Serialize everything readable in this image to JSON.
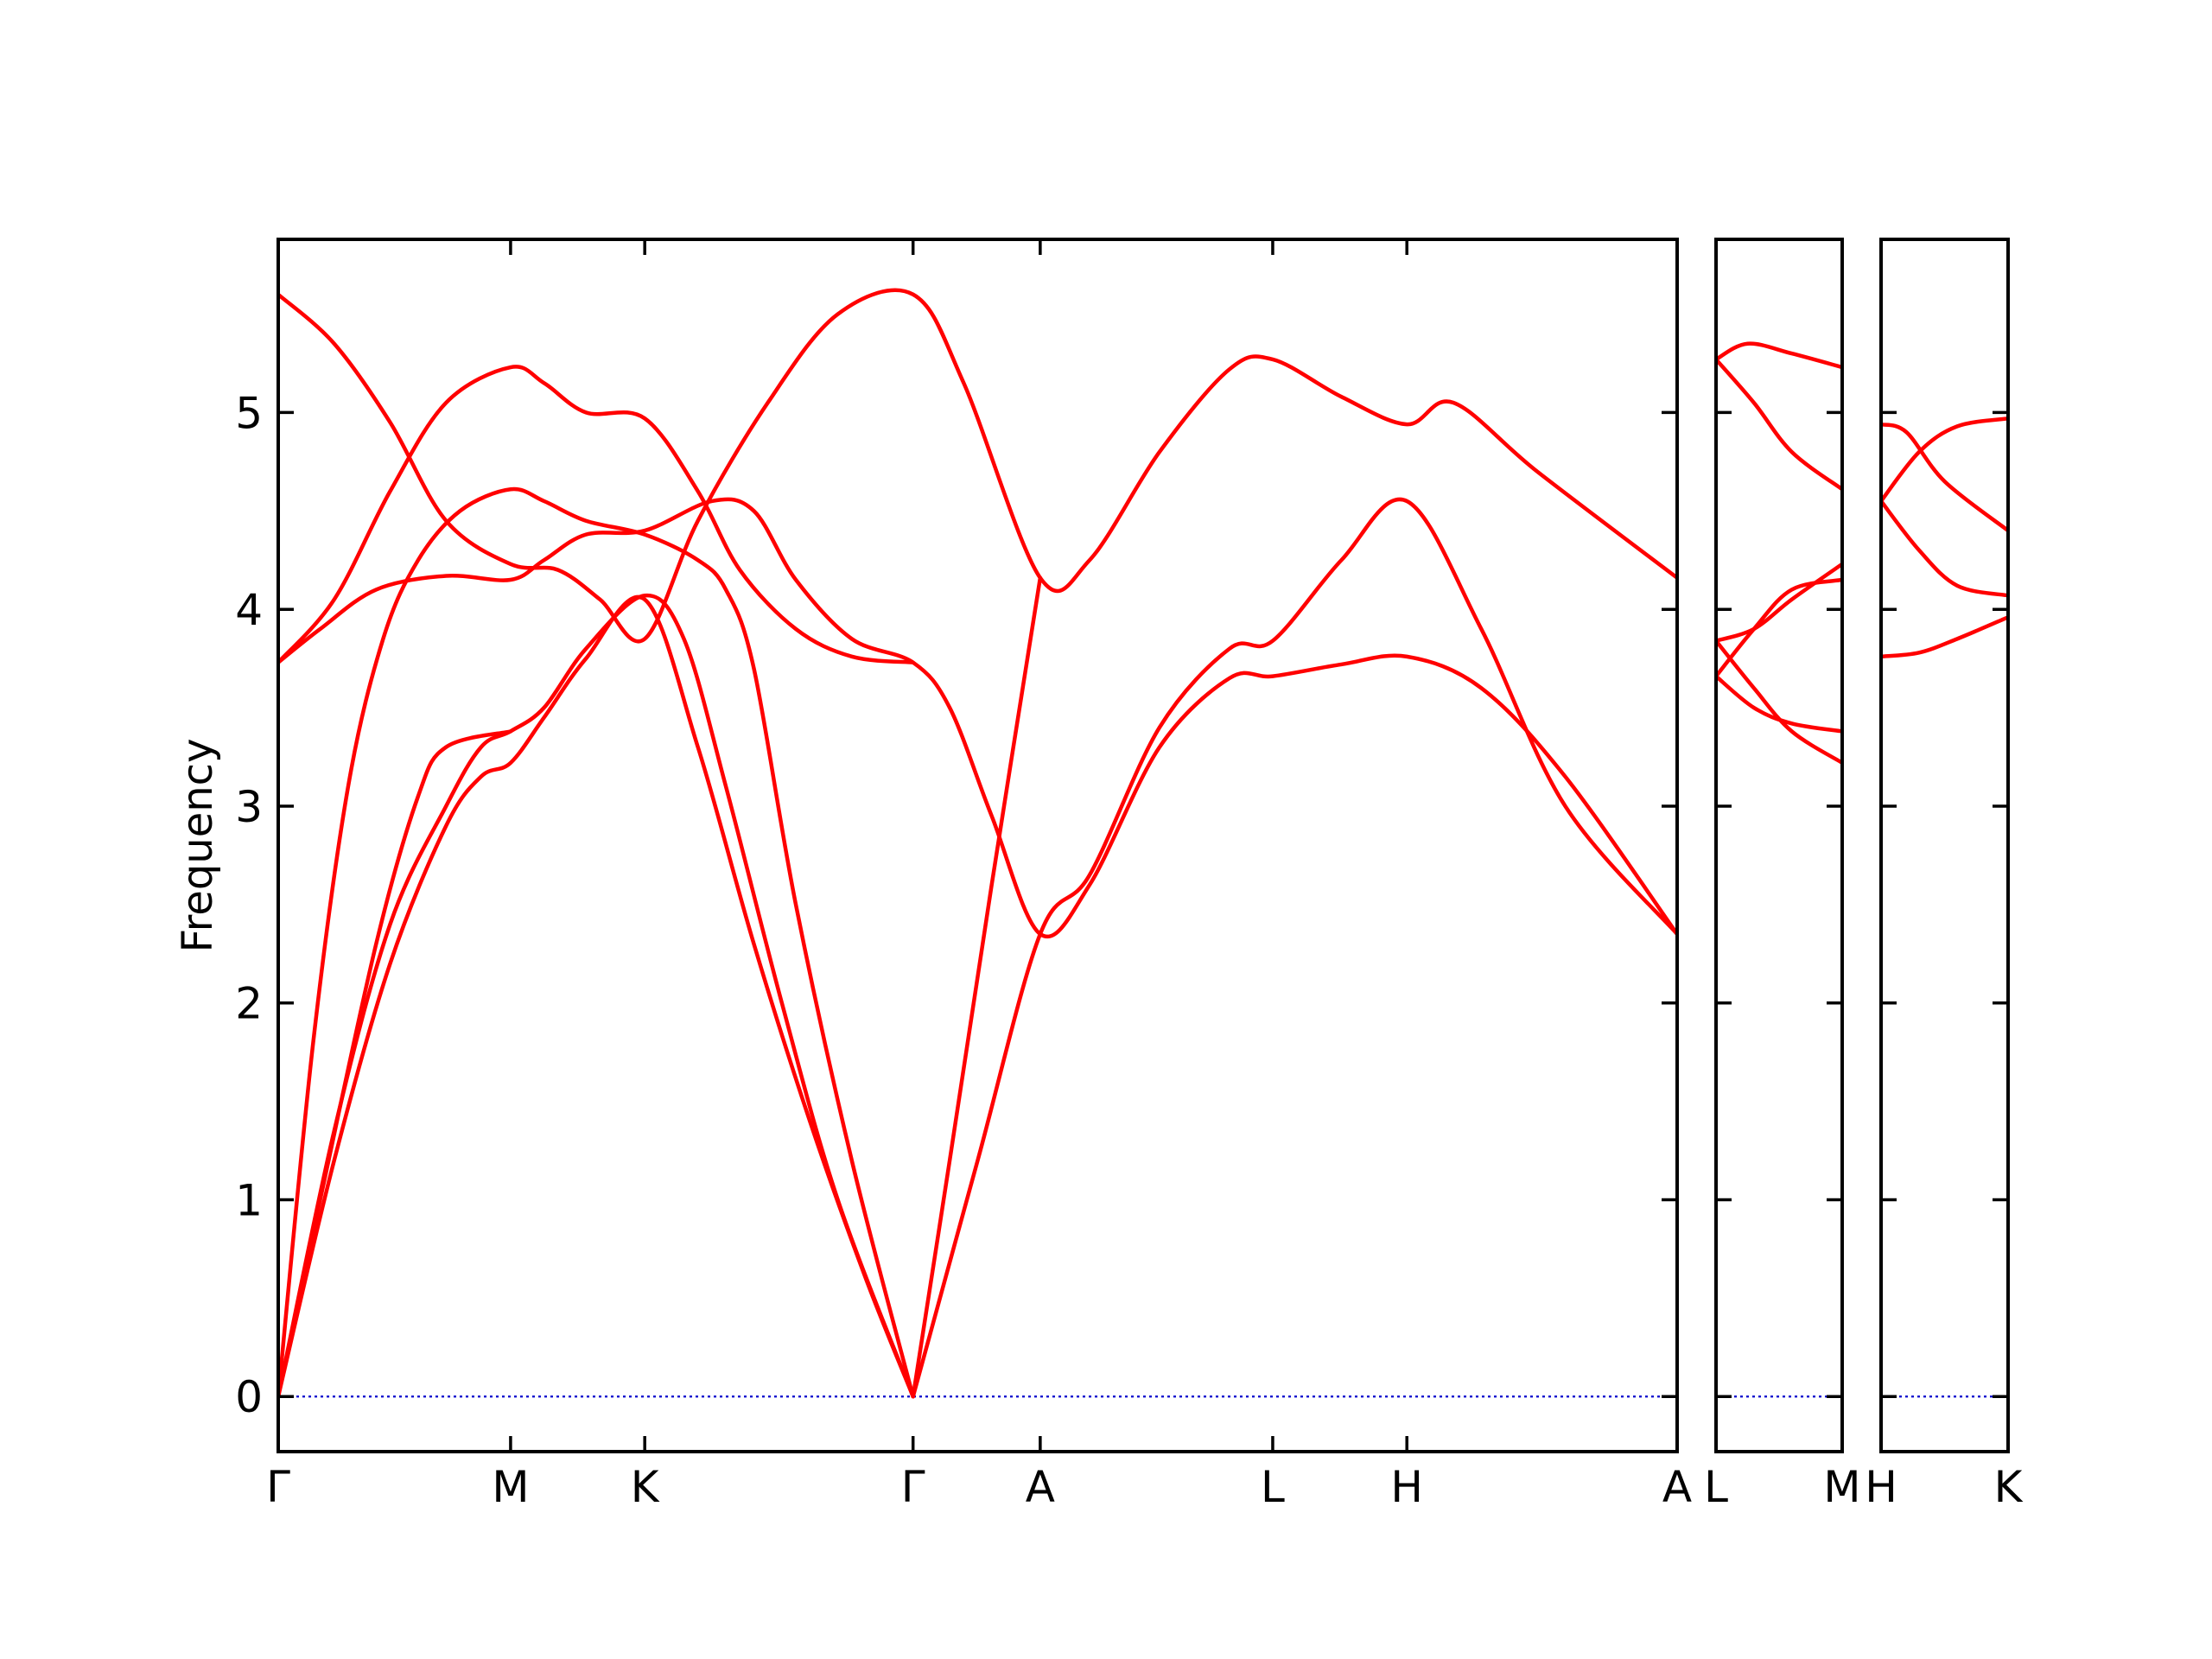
{
  "chart_data": {
    "type": "line",
    "title": "",
    "ylabel": "Frequency",
    "ylim": [
      -0.28,
      5.88
    ],
    "yticks": [
      0,
      1,
      2,
      3,
      4,
      5
    ],
    "colors": {
      "bands": "#ff0000",
      "zero_line": "#0000cc",
      "frame": "#000000"
    },
    "grid": false,
    "panels": [
      {
        "xlim": [
          0,
          10
        ],
        "labels": [
          {
            "x": 0,
            "text": "Γ"
          },
          {
            "x": 1.661,
            "text": "M"
          },
          {
            "x": 2.62,
            "text": "K"
          },
          {
            "x": 4.538,
            "text": "Γ"
          },
          {
            "x": 5.447,
            "text": "A"
          },
          {
            "x": 7.109,
            "text": "L"
          },
          {
            "x": 8.068,
            "text": "H"
          },
          {
            "x": 10,
            "text": "A"
          }
        ],
        "series": [
          {
            "points": [
              [
                0,
                0
              ],
              [
                0.4,
                1.2
              ],
              [
                0.8,
                2.2
              ],
              [
                1.2,
                2.9
              ],
              [
                1.45,
                3.15
              ],
              [
                1.661,
                3.22
              ],
              [
                1.9,
                3.45
              ],
              [
                2.2,
                3.75
              ],
              [
                2.62,
                4.05
              ],
              [
                3.0,
                3.3
              ],
              [
                3.4,
                2.3
              ],
              [
                3.8,
                1.4
              ],
              [
                4.2,
                0.6
              ],
              [
                4.538,
                0
              ]
            ]
          },
          {
            "points": [
              [
                0,
                0
              ],
              [
                0.4,
                1.35
              ],
              [
                0.8,
                2.4
              ],
              [
                1.2,
                3.0
              ],
              [
                1.45,
                3.3
              ],
              [
                1.661,
                3.38
              ],
              [
                1.9,
                3.5
              ],
              [
                2.2,
                3.8
              ],
              [
                2.62,
                4.07
              ],
              [
                2.9,
                3.85
              ],
              [
                3.2,
                3.1
              ],
              [
                3.6,
                2.0
              ],
              [
                4.0,
                1.0
              ],
              [
                4.538,
                0
              ]
            ]
          },
          {
            "points": [
              [
                0,
                0
              ],
              [
                0.25,
                1.8
              ],
              [
                0.5,
                3.1
              ],
              [
                0.75,
                3.85
              ],
              [
                1.0,
                4.25
              ],
              [
                1.3,
                4.5
              ],
              [
                1.661,
                4.61
              ],
              [
                1.9,
                4.55
              ],
              [
                2.2,
                4.45
              ],
              [
                2.62,
                4.38
              ],
              [
                3.0,
                4.25
              ],
              [
                3.2,
                4.1
              ],
              [
                3.4,
                3.7
              ],
              [
                3.7,
                2.5
              ],
              [
                4.1,
                1.2
              ],
              [
                4.538,
                0
              ]
            ]
          },
          {
            "points": [
              [
                0,
                3.73
              ],
              [
                0.3,
                3.9
              ],
              [
                0.7,
                4.1
              ],
              [
                1.2,
                4.17
              ],
              [
                1.661,
                4.15
              ],
              [
                1.9,
                4.25
              ],
              [
                2.2,
                4.38
              ],
              [
                2.62,
                4.4
              ],
              [
                3.1,
                4.55
              ],
              [
                3.4,
                4.5
              ],
              [
                3.7,
                4.15
              ],
              [
                4.1,
                3.85
              ],
              [
                4.538,
                3.73
              ],
              [
                4.8,
                3.5
              ],
              [
                5.1,
                2.95
              ],
              [
                5.447,
                2.35
              ],
              [
                5.8,
                2.6
              ],
              [
                6.3,
                3.3
              ],
              [
                6.8,
                3.65
              ],
              [
                7.109,
                3.66
              ],
              [
                7.6,
                3.72
              ],
              [
                8.068,
                3.76
              ],
              [
                8.6,
                3.6
              ],
              [
                9.2,
                3.15
              ],
              [
                10,
                2.35
              ]
            ]
          },
          {
            "points": [
              [
                0,
                3.73
              ],
              [
                0.4,
                4.05
              ],
              [
                0.8,
                4.6
              ],
              [
                1.2,
                5.05
              ],
              [
                1.661,
                5.23
              ],
              [
                1.9,
                5.15
              ],
              [
                2.2,
                5.0
              ],
              [
                2.62,
                4.97
              ],
              [
                3.0,
                4.6
              ],
              [
                3.3,
                4.2
              ],
              [
                3.7,
                3.9
              ],
              [
                4.1,
                3.76
              ],
              [
                4.538,
                3.73
              ]
            ]
          },
          {
            "points": [
              [
                0,
                5.6
              ],
              [
                0.4,
                5.35
              ],
              [
                0.8,
                4.95
              ],
              [
                1.2,
                4.45
              ],
              [
                1.661,
                4.23
              ],
              [
                2.0,
                4.2
              ],
              [
                2.3,
                4.05
              ],
              [
                2.62,
                3.85
              ],
              [
                3.0,
                4.45
              ],
              [
                3.5,
                5.05
              ],
              [
                4.0,
                5.5
              ],
              [
                4.538,
                5.6
              ],
              [
                4.9,
                5.15
              ],
              [
                5.447,
                4.16
              ],
              [
                5.8,
                4.25
              ],
              [
                6.3,
                4.8
              ],
              [
                6.8,
                5.22
              ],
              [
                7.109,
                5.27
              ],
              [
                7.6,
                5.08
              ],
              [
                8.068,
                4.94
              ],
              [
                8.4,
                5.05
              ],
              [
                9.0,
                4.7
              ],
              [
                10,
                4.16
              ]
            ]
          },
          {
            "points": [
              [
                0,
                0
              ],
              [
                0.3,
                1.0
              ],
              [
                0.7,
                2.3
              ],
              [
                1.0,
                3.05
              ],
              [
                1.2,
                3.3
              ],
              [
                1.661,
                3.38
              ]
            ]
          },
          {
            "points": [
              [
                4.538,
                0
              ],
              [
                4.8,
                1.2
              ],
              [
                5.1,
                2.6
              ],
              [
                5.447,
                4.16
              ]
            ]
          },
          {
            "points": [
              [
                4.538,
                0
              ],
              [
                5.0,
                1.2
              ],
              [
                5.447,
                2.35
              ],
              [
                5.8,
                2.65
              ],
              [
                6.3,
                3.4
              ],
              [
                6.8,
                3.8
              ],
              [
                7.109,
                3.84
              ],
              [
                7.6,
                4.25
              ],
              [
                8.068,
                4.55
              ],
              [
                8.6,
                3.9
              ],
              [
                9.2,
                3.0
              ],
              [
                10,
                2.35
              ]
            ]
          }
        ]
      },
      {
        "xlim": [
          0,
          1
        ],
        "labels": [
          {
            "x": 0,
            "text": "L"
          },
          {
            "x": 1,
            "text": "M"
          }
        ],
        "series": [
          {
            "points": [
              [
                0,
                5.27
              ],
              [
                0.25,
                5.35
              ],
              [
                0.6,
                5.3
              ],
              [
                1,
                5.23
              ]
            ]
          },
          {
            "points": [
              [
                0,
                5.27
              ],
              [
                0.3,
                5.05
              ],
              [
                0.6,
                4.8
              ],
              [
                1,
                4.61
              ]
            ]
          },
          {
            "points": [
              [
                0,
                3.84
              ],
              [
                0.3,
                3.9
              ],
              [
                0.6,
                4.05
              ],
              [
                1,
                4.23
              ]
            ]
          },
          {
            "points": [
              [
                0,
                3.66
              ],
              [
                0.3,
                3.9
              ],
              [
                0.6,
                4.1
              ],
              [
                1,
                4.15
              ]
            ]
          },
          {
            "points": [
              [
                0,
                3.66
              ],
              [
                0.3,
                3.5
              ],
              [
                0.6,
                3.42
              ],
              [
                1,
                3.38
              ]
            ]
          },
          {
            "points": [
              [
                0,
                3.84
              ],
              [
                0.3,
                3.6
              ],
              [
                0.6,
                3.38
              ],
              [
                1,
                3.22
              ]
            ]
          }
        ]
      },
      {
        "xlim": [
          0,
          1
        ],
        "labels": [
          {
            "x": 0,
            "text": "H"
          },
          {
            "x": 1,
            "text": "K"
          }
        ],
        "series": [
          {
            "points": [
              [
                0,
                4.94
              ],
              [
                0.2,
                4.9
              ],
              [
                0.5,
                4.65
              ],
              [
                1,
                4.4
              ]
            ]
          },
          {
            "points": [
              [
                0,
                4.55
              ],
              [
                0.3,
                4.8
              ],
              [
                0.6,
                4.93
              ],
              [
                1,
                4.97
              ]
            ]
          },
          {
            "points": [
              [
                0,
                4.55
              ],
              [
                0.3,
                4.3
              ],
              [
                0.6,
                4.12
              ],
              [
                1,
                4.07
              ]
            ]
          },
          {
            "points": [
              [
                0,
                3.76
              ],
              [
                0.3,
                3.78
              ],
              [
                0.6,
                3.85
              ],
              [
                1,
                3.96
              ]
            ]
          }
        ]
      }
    ]
  }
}
